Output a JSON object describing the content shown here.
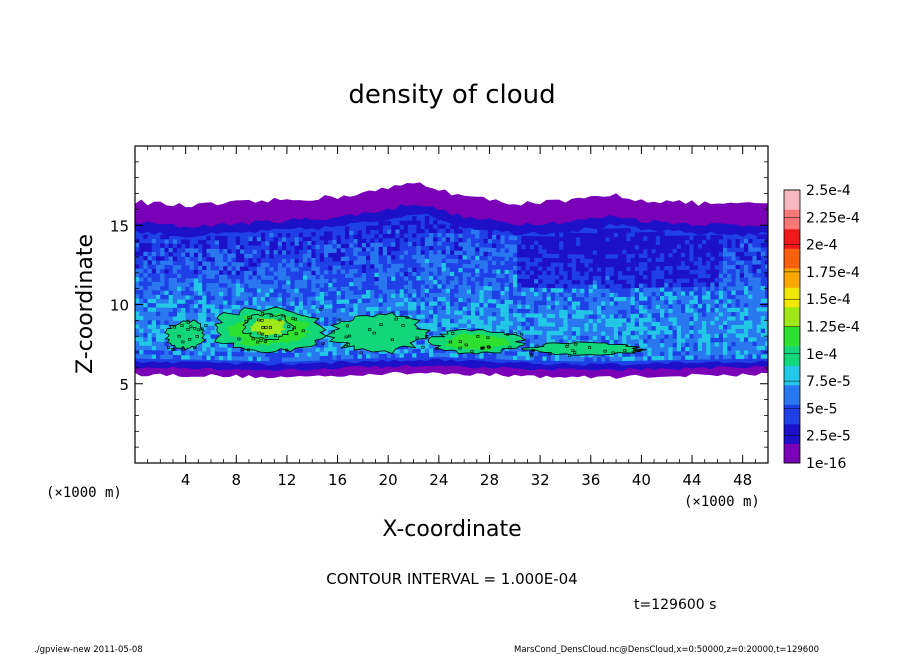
{
  "chart_data": {
    "type": "heatmap",
    "title": "density of cloud",
    "xlabel": "X-coordinate",
    "ylabel": "Z-coordinate",
    "x_unit": "(×1000 m)",
    "y_unit": "(×1000 m)",
    "xlim": [
      0,
      50
    ],
    "ylim": [
      0,
      20
    ],
    "x_ticks": [
      4,
      8,
      12,
      16,
      20,
      24,
      28,
      32,
      36,
      40,
      44,
      48
    ],
    "y_ticks": [
      5,
      10,
      15
    ],
    "colorbar": {
      "labels": [
        "1e-16",
        "2.5e-5",
        "5e-5",
        "7.5e-5",
        "1e-4",
        "1.25e-4",
        "1.5e-4",
        "1.75e-4",
        "2e-4",
        "2.25e-4",
        "2.5e-4"
      ],
      "colors": [
        "#7a00b8",
        "#1c10c8",
        "#1e40e6",
        "#2a78f0",
        "#22c8e6",
        "#12d67a",
        "#2ee030",
        "#a0e81a",
        "#f0e800",
        "#f8a800",
        "#f86010",
        "#f01818",
        "#f87878",
        "#f8b8c0"
      ]
    },
    "cloud_layer": {
      "bottom_km": 5.5,
      "top_km_typical": 16.5,
      "top_km_max": 17.7,
      "top_profile": [
        [
          0,
          16.5
        ],
        [
          4,
          16.2
        ],
        [
          8,
          16.4
        ],
        [
          12,
          16.6
        ],
        [
          16,
          16.8
        ],
        [
          20,
          17.3
        ],
        [
          22,
          17.7
        ],
        [
          24,
          17.3
        ],
        [
          26,
          16.8
        ],
        [
          30,
          16.4
        ],
        [
          34,
          16.5
        ],
        [
          38,
          16.9
        ],
        [
          40,
          16.6
        ],
        [
          44,
          16.4
        ],
        [
          48,
          16.3
        ],
        [
          50,
          16.4
        ]
      ],
      "bottom_profile": [
        [
          0,
          5.6
        ],
        [
          6,
          5.5
        ],
        [
          12,
          5.4
        ],
        [
          18,
          5.6
        ],
        [
          24,
          5.7
        ],
        [
          30,
          5.5
        ],
        [
          36,
          5.4
        ],
        [
          42,
          5.5
        ],
        [
          50,
          5.6
        ]
      ],
      "high_density_regions": [
        {
          "x_range": [
            2.5,
            5.5
          ],
          "z_range": [
            7.2,
            9.0
          ],
          "level": "1e-4"
        },
        {
          "x_range": [
            6,
            15
          ],
          "z_range": [
            7.0,
            9.8
          ],
          "level": "1.25e-4"
        },
        {
          "x_range": [
            8.5,
            12.5
          ],
          "z_range": [
            7.8,
            9.4
          ],
          "level": "1.5e-4"
        },
        {
          "x_range": [
            15.5,
            23
          ],
          "z_range": [
            7.0,
            9.4
          ],
          "level": "1e-4"
        },
        {
          "x_range": [
            23.5,
            30.5
          ],
          "z_range": [
            6.9,
            8.4
          ],
          "level": "1.25e-4"
        },
        {
          "x_range": [
            31,
            40
          ],
          "z_range": [
            6.8,
            7.6
          ],
          "level": "1e-4"
        }
      ]
    }
  },
  "annotations": {
    "contour_interval": "CONTOUR INTERVAL = 1.000E-04",
    "time": "t=129600 s",
    "program": "./gpview-new  2011-05-08",
    "source": "MarsCond_DensCloud.nc@DensCloud,x=0:50000,z=0:20000,t=129600"
  }
}
